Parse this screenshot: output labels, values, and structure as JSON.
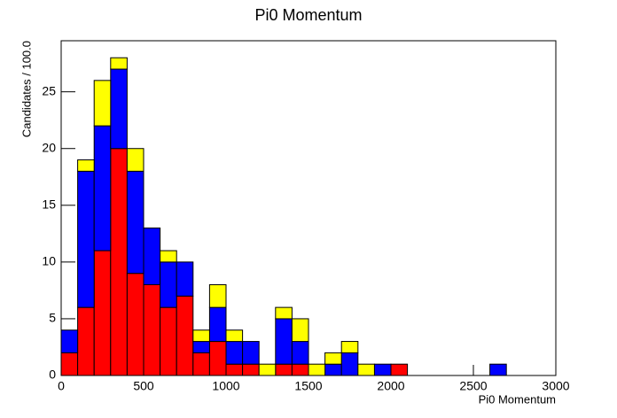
{
  "chart_data": {
    "type": "stacked_histogram",
    "title": "Pi0 Momentum",
    "x_label": "Pi0 Momentum",
    "y_label": "Candidates / 100.0",
    "bins": [
      0,
      100,
      200,
      300,
      400,
      500,
      600,
      700,
      800,
      900,
      1000,
      1100,
      1200,
      1300,
      1400,
      1500,
      1600,
      1700,
      1800,
      1900,
      2000,
      2100,
      2200,
      2300,
      2400,
      2500,
      2600,
      2700,
      2800,
      2900,
      3000
    ],
    "series": [
      {
        "color": "#ff0000",
        "values": [
          2,
          6,
          11,
          20,
          9,
          8,
          6,
          7,
          2,
          3,
          1,
          1,
          0,
          1,
          1,
          0,
          0,
          0,
          0,
          0,
          1,
          0,
          0,
          0,
          0,
          0,
          0,
          0,
          0,
          0
        ]
      },
      {
        "color": "#0000ff",
        "values": [
          2,
          12,
          11,
          7,
          9,
          5,
          4,
          3,
          1,
          3,
          2,
          2,
          0,
          4,
          2,
          0,
          1,
          2,
          0,
          1,
          0,
          0,
          0,
          0,
          0,
          0,
          1,
          0,
          0,
          0
        ]
      },
      {
        "color": "#ffff00",
        "values": [
          0,
          1,
          4,
          1,
          2,
          0,
          1,
          0,
          1,
          2,
          1,
          0,
          1,
          1,
          2,
          1,
          1,
          1,
          1,
          0,
          0,
          0,
          0,
          0,
          0,
          0,
          0,
          0,
          0,
          0
        ]
      }
    ],
    "xlim": [
      0,
      3000
    ],
    "ylim": [
      0,
      29.5
    ],
    "xticks": [
      0,
      500,
      1000,
      1500,
      2000,
      2500,
      3000
    ],
    "yticks": [
      0,
      5,
      10,
      15,
      20,
      25
    ]
  }
}
